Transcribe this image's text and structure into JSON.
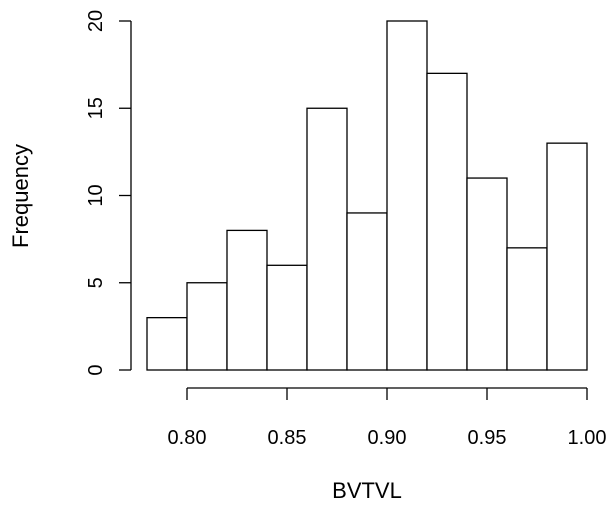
{
  "chart_data": {
    "type": "bar",
    "histogram": true,
    "bin_edges": [
      0.78,
      0.8,
      0.82,
      0.84,
      0.86,
      0.88,
      0.9,
      0.92,
      0.94,
      0.96,
      0.98,
      1.0
    ],
    "values": [
      3,
      5,
      8,
      6,
      15,
      9,
      20,
      17,
      11,
      7,
      13
    ],
    "xlabel": "BVTVL",
    "ylabel": "Frequency",
    "x_ticks": [
      "0.80",
      "0.85",
      "0.90",
      "0.95",
      "1.00"
    ],
    "y_ticks": [
      "0",
      "5",
      "10",
      "15",
      "20"
    ],
    "xlim": [
      0.78,
      1.0
    ],
    "ylim": [
      0,
      20
    ],
    "grid": false,
    "bar_fill": "#ffffff",
    "bar_stroke": "#000000"
  }
}
